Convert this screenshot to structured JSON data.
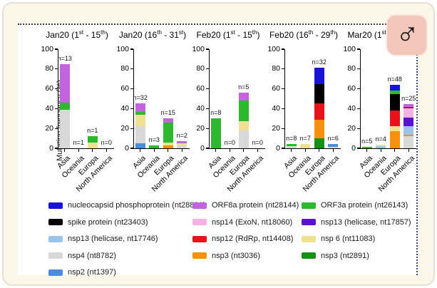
{
  "icons": {
    "male_symbol": "♂"
  },
  "colors": {
    "nucleocapsid": "#1813d6",
    "spike": "#000000",
    "nsp13_17746": "#9cc3e9",
    "nsp4": "#d8d8d8",
    "nsp2": "#4a8edb",
    "orf8a": "#c264dd",
    "nsp14": "#f5b1e2",
    "nsp12": "#e8121c",
    "nsp3_3036": "#f7900f",
    "orf3a": "#2db92d",
    "nsp13_17857": "#5a12d1",
    "nsp6": "#efe093",
    "nsp3_2891": "#149114",
    "dark_magenta": "#a01d62"
  },
  "chart_data": {
    "type": "bar",
    "stacked": true,
    "title": "",
    "ylabel": "Mutation frequency (%)",
    "ylim": [
      0,
      100
    ],
    "yticks": [
      0,
      20,
      40,
      60,
      80,
      100
    ],
    "grid": false,
    "categories": [
      "Asia",
      "Oceania",
      "Europa",
      "North America"
    ],
    "panels": [
      {
        "title": "Jan20 (1st - 15th)",
        "bars": [
          {
            "category": "Asia",
            "n": "n=13",
            "segments": [
              {
                "key": "nsp4",
                "value": 39
              },
              {
                "key": "orf3a",
                "value": 7
              },
              {
                "key": "orf8a",
                "value": 39
              }
            ]
          },
          {
            "category": "Oceania",
            "n": "n=1",
            "segments": []
          },
          {
            "category": "Europa",
            "n": "n=1",
            "segments": [
              {
                "key": "nsp6",
                "value": 6
              },
              {
                "key": "orf3a",
                "value": 6
              }
            ]
          },
          {
            "category": "North America",
            "n": "n=0",
            "segments": []
          }
        ]
      },
      {
        "title": "Jan20 (16th - 31st)",
        "bars": [
          {
            "category": "Asia",
            "n": "n=32",
            "segments": [
              {
                "key": "nsp2",
                "value": 5
              },
              {
                "key": "nsp4",
                "value": 17
              },
              {
                "key": "nsp6",
                "value": 12
              },
              {
                "key": "orf3a",
                "value": 3
              },
              {
                "key": "orf8a",
                "value": 8
              }
            ]
          },
          {
            "category": "Oceania",
            "n": "n=3",
            "segments": [
              {
                "key": "orf3a",
                "value": 3
              }
            ]
          },
          {
            "category": "Europa",
            "n": "n=15",
            "segments": [
              {
                "key": "nsp3_3036",
                "value": 3
              },
              {
                "key": "nsp6",
                "value": 3
              },
              {
                "key": "orf3a",
                "value": 20
              },
              {
                "key": "orf8a",
                "value": 4
              }
            ]
          },
          {
            "category": "North America",
            "n": "n=2",
            "segments": [
              {
                "key": "nsp4",
                "value": 3
              },
              {
                "key": "nsp6",
                "value": 2
              },
              {
                "key": "orf8a",
                "value": 2
              }
            ]
          }
        ]
      },
      {
        "title": "Feb20 (1st - 15th)",
        "bars": [
          {
            "category": "Asia",
            "n": "n=8",
            "segments": [
              {
                "key": "orf3a",
                "value": 30
              }
            ]
          },
          {
            "category": "Oceania",
            "n": "n=0",
            "segments": []
          },
          {
            "category": "Europa",
            "n": "n=5",
            "segments": [
              {
                "key": "nsp4",
                "value": 18
              },
              {
                "key": "nsp6",
                "value": 9
              },
              {
                "key": "orf3a",
                "value": 21
              },
              {
                "key": "orf8a",
                "value": 8
              }
            ]
          },
          {
            "category": "North America",
            "n": "n=0",
            "segments": []
          }
        ]
      },
      {
        "title": "Feb20 (16th - 29th)",
        "bars": [
          {
            "category": "Asia",
            "n": "n=8",
            "segments": [
              {
                "key": "nsp4",
                "value": 2
              },
              {
                "key": "orf3a",
                "value": 2.5
              }
            ]
          },
          {
            "category": "Oceania",
            "n": "n=7",
            "segments": [
              {
                "key": "nsp6",
                "value": 4
              }
            ]
          },
          {
            "category": "Europa",
            "n": "n=32",
            "segments": [
              {
                "key": "nsp3_2891",
                "value": 10
              },
              {
                "key": "nsp3_3036",
                "value": 19
              },
              {
                "key": "nsp12",
                "value": 16
              },
              {
                "key": "spike",
                "value": 20
              },
              {
                "key": "nucleocapsid",
                "value": 16
              }
            ]
          },
          {
            "category": "North America",
            "n": "n=6",
            "segments": [
              {
                "key": "nsp4",
                "value": 1.5
              },
              {
                "key": "nsp2",
                "value": 2.5
              }
            ]
          }
        ]
      },
      {
        "title": "Mar20 (1st - 12th)",
        "bars": [
          {
            "category": "Asia",
            "n": "n=5",
            "segments": [
              {
                "key": "orf3a",
                "value": 1.5
              }
            ]
          },
          {
            "category": "Oceania",
            "n": "n=4",
            "segments": [
              {
                "key": "nsp13_17746",
                "value": 2
              },
              {
                "key": "nsp6",
                "value": 1.5
              }
            ]
          },
          {
            "category": "Europa",
            "n": "n=48",
            "segments": [
              {
                "key": "nsp3_3036",
                "value": 17
              },
              {
                "key": "nsp6",
                "value": 5
              },
              {
                "key": "nsp12",
                "value": 16
              },
              {
                "key": "spike",
                "value": 17
              },
              {
                "key": "orf3a",
                "value": 3
              },
              {
                "key": "nucleocapsid",
                "value": 6
              }
            ]
          },
          {
            "category": "North America",
            "n": "n=25",
            "segments": [
              {
                "key": "nsp4",
                "value": 12
              },
              {
                "key": "nsp3_3036",
                "value": 1.5
              },
              {
                "key": "nsp13_17746",
                "value": 8.5
              },
              {
                "key": "nsp13_17857",
                "value": 9
              },
              {
                "key": "nsp14",
                "value": 9
              },
              {
                "key": "dark_magenta",
                "value": 1.5
              },
              {
                "key": "orf8a",
                "value": 3
              }
            ]
          }
        ]
      }
    ],
    "legend_position": "bottom"
  },
  "legend": {
    "columns": [
      {
        "x": 43,
        "items": [
          {
            "key": "nucleocapsid",
            "label": "nucleocapsid phosphoprotein (nt28881)"
          },
          {
            "key": "spike",
            "label": "spike protein (nt23403)"
          },
          {
            "key": "nsp13_17746",
            "label": "nsp13 (helicase, nt17746)"
          },
          {
            "key": "nsp4",
            "label": "nsp4 (nt8782)"
          },
          {
            "key": "nsp2",
            "label": "nsp2 (nt1397)"
          }
        ]
      },
      {
        "x": 245,
        "items": [
          {
            "key": "orf8a",
            "label": "ORF8a protein (nt28144)"
          },
          {
            "key": "nsp14",
            "label": "nsp14 (ExoN, nt18060)"
          },
          {
            "key": "nsp12",
            "label": "nsp12 (RdRp, nt14408)"
          },
          {
            "key": "nsp3_3036",
            "label": "nsp3 (nt3036)"
          }
        ]
      },
      {
        "x": 398,
        "items": [
          {
            "key": "orf3a",
            "label": "ORF3a protein (nt26143)"
          },
          {
            "key": "nsp13_17857",
            "label": "nsp13 (helicase, nt17857)"
          },
          {
            "key": "nsp6",
            "label": "nsp 6 (nt11083)"
          },
          {
            "key": "nsp3_2891",
            "label": "nsp3 (nt2891)"
          }
        ]
      }
    ]
  }
}
